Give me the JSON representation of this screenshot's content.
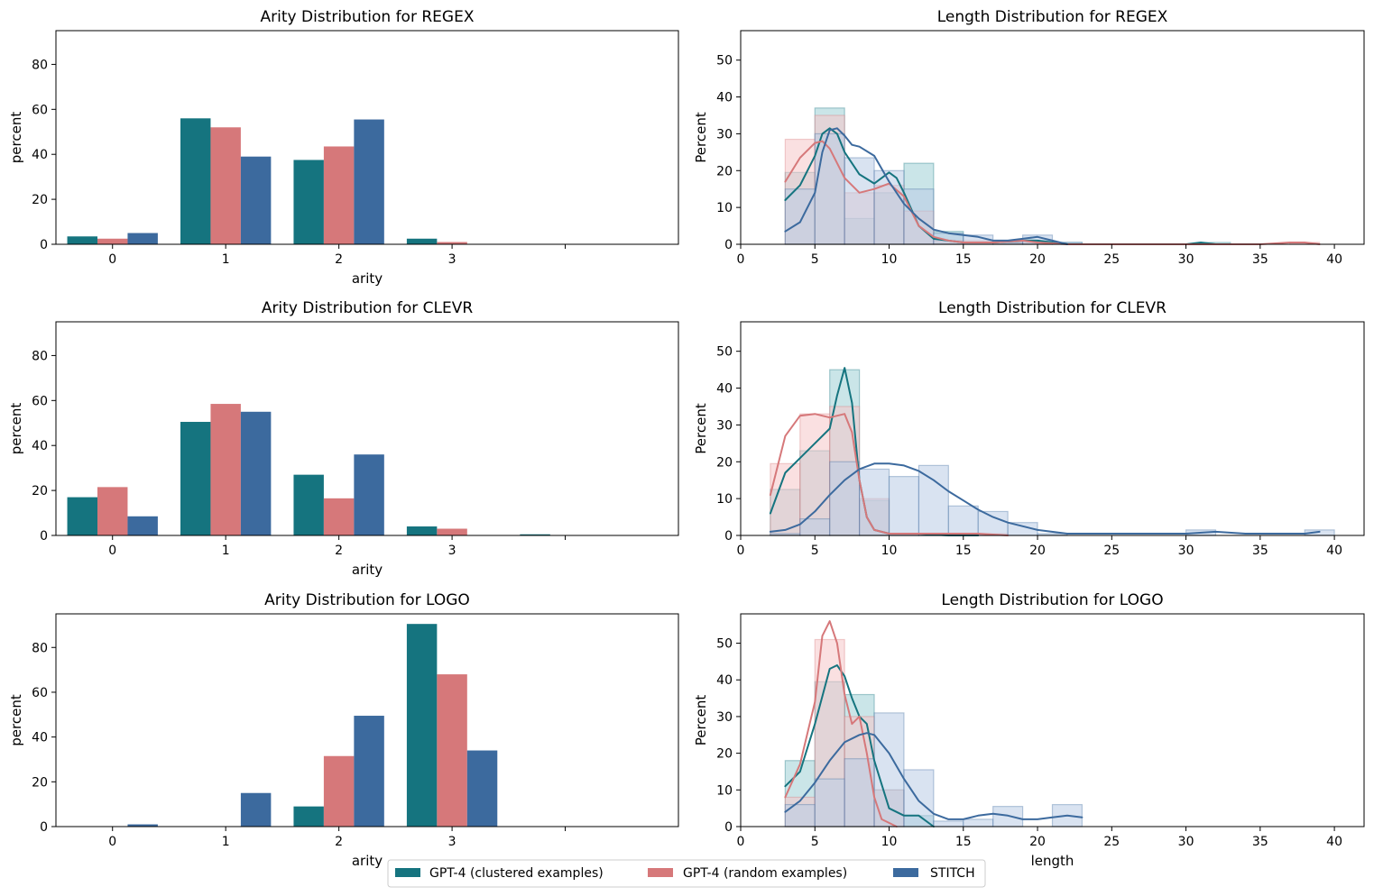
{
  "colors": {
    "gpt4_clustered": "#15747f",
    "gpt4_random": "#d6787a",
    "stitch": "#3c6a9e",
    "hist_clustered": "#9fd0d6",
    "hist_random": "#f5c6c9",
    "hist_stitch": "#b9cce6"
  },
  "legend": {
    "items": [
      {
        "label": "GPT-4 (clustered examples)",
        "color": "#15747f"
      },
      {
        "label": "GPT-4 (random examples)",
        "color": "#d6787a"
      },
      {
        "label": "STITCH",
        "color": "#3c6a9e"
      }
    ]
  },
  "chart_data": [
    {
      "type": "bar",
      "title": "Arity Distribution for REGEX",
      "xlabel": "arity",
      "ylabel": "percent",
      "categories": [
        "0",
        "1",
        "2",
        "3",
        ""
      ],
      "ylim": [
        0,
        95
      ],
      "yticks": [
        0,
        20,
        40,
        60,
        80
      ],
      "series": [
        {
          "name": "GPT-4 (clustered examples)",
          "values": [
            3.5,
            56,
            37.5,
            2.5,
            0
          ]
        },
        {
          "name": "GPT-4 (random examples)",
          "values": [
            2.5,
            52,
            43.5,
            1,
            0
          ]
        },
        {
          "name": "STITCH",
          "values": [
            5,
            39,
            55.5,
            0,
            0
          ]
        }
      ]
    },
    {
      "type": "histogram",
      "title": "Length Distribution for REGEX",
      "xlabel": "",
      "ylabel": "Percent",
      "xlim": [
        0,
        42
      ],
      "ylim": [
        0,
        58
      ],
      "xticks": [
        0,
        5,
        10,
        15,
        20,
        25,
        30,
        35,
        40
      ],
      "yticks": [
        0,
        10,
        20,
        30,
        40,
        50
      ],
      "series": [
        {
          "name": "GPT-4 (clustered examples)",
          "bin_edges": [
            3,
            5,
            7,
            9,
            11,
            13,
            15,
            17,
            19,
            21,
            23,
            25,
            27,
            29,
            31,
            33
          ],
          "values": [
            19.5,
            37,
            7,
            14,
            22,
            3.5,
            0.5,
            0.5,
            1,
            0.5,
            0,
            0,
            0,
            0,
            0.5
          ],
          "kde_x": [
            3,
            4,
            5,
            5.5,
            6,
            6.5,
            7,
            8,
            9,
            10,
            10.5,
            11,
            12,
            13,
            15,
            17,
            19,
            20,
            21,
            22,
            25,
            30,
            31,
            32,
            35
          ],
          "kde_y": [
            12,
            16,
            24,
            30,
            31.5,
            30,
            25,
            19,
            16.5,
            19.5,
            18,
            14,
            5,
            1.5,
            0.5,
            0.5,
            1,
            1,
            0.5,
            0,
            0,
            0,
            0.5,
            0,
            0
          ]
        },
        {
          "name": "GPT-4 (random examples)",
          "bin_edges": [
            3,
            5,
            7,
            9,
            11,
            13,
            15,
            17,
            19,
            21,
            23,
            25,
            27,
            29,
            31,
            33,
            35,
            37,
            39
          ],
          "values": [
            28.5,
            35,
            14,
            16,
            9,
            1,
            1,
            1,
            0.5,
            0,
            0,
            0,
            0,
            0,
            0,
            0,
            0,
            0.5
          ],
          "kde_x": [
            3,
            4,
            5,
            5.5,
            6,
            7,
            8,
            9,
            10,
            11,
            12,
            13,
            14,
            15,
            17,
            19,
            20,
            22,
            25,
            30,
            35,
            37,
            38,
            39
          ],
          "kde_y": [
            17,
            23.5,
            27.5,
            28,
            26,
            18,
            14,
            15,
            16.5,
            13,
            5,
            2,
            1,
            0.5,
            0.5,
            1,
            0.5,
            0,
            0,
            0,
            0,
            0.5,
            0.5,
            0
          ]
        },
        {
          "name": "STITCH",
          "bin_edges": [
            3,
            5,
            7,
            9,
            11,
            13,
            15,
            17,
            19,
            21,
            23
          ],
          "values": [
            15,
            30,
            23.5,
            20,
            15,
            3,
            2.5,
            0.5,
            2.5,
            0.5
          ],
          "kde_x": [
            3,
            4,
            5,
            5.5,
            6,
            6.5,
            7,
            7.5,
            8,
            9,
            10,
            11,
            12,
            13,
            14,
            15,
            16,
            17,
            18,
            19,
            20,
            21,
            22
          ],
          "kde_y": [
            3.5,
            6,
            14,
            25,
            31,
            31.5,
            29.5,
            27,
            26.5,
            24,
            17,
            11,
            7,
            4,
            3,
            2.5,
            2,
            1,
            1,
            1.5,
            2,
            1,
            0
          ]
        }
      ]
    },
    {
      "type": "bar",
      "title": "Arity Distribution for CLEVR",
      "xlabel": "arity",
      "ylabel": "percent",
      "categories": [
        "0",
        "1",
        "2",
        "3",
        ""
      ],
      "ylim": [
        0,
        95
      ],
      "yticks": [
        0,
        20,
        40,
        60,
        80
      ],
      "series": [
        {
          "name": "GPT-4 (clustered examples)",
          "values": [
            17,
            50.5,
            27,
            4,
            0.5
          ]
        },
        {
          "name": "GPT-4 (random examples)",
          "values": [
            21.5,
            58.5,
            16.5,
            3,
            0
          ]
        },
        {
          "name": "STITCH",
          "values": [
            8.5,
            55,
            36,
            0,
            0
          ]
        }
      ]
    },
    {
      "type": "histogram",
      "title": "Length Distribution for CLEVR",
      "xlabel": "",
      "ylabel": "Percent",
      "xlim": [
        0,
        42
      ],
      "ylim": [
        0,
        58
      ],
      "xticks": [
        0,
        5,
        10,
        15,
        20,
        25,
        30,
        35,
        40
      ],
      "yticks": [
        0,
        10,
        20,
        30,
        40,
        50
      ],
      "series": [
        {
          "name": "GPT-4 (clustered examples)",
          "bin_edges": [
            2,
            4,
            6,
            8,
            10,
            12,
            14,
            16,
            18
          ],
          "values": [
            12.5,
            23,
            45,
            9.5,
            0.5,
            0.5,
            0,
            0
          ],
          "kde_x": [
            2,
            3,
            4,
            5,
            6,
            6.5,
            7,
            7.5,
            8,
            8.5,
            9,
            10,
            12,
            14,
            16
          ],
          "kde_y": [
            6,
            17,
            21,
            25,
            29,
            38,
            45.5,
            36,
            15,
            5,
            1.5,
            0.5,
            0.5,
            0,
            0
          ]
        },
        {
          "name": "GPT-4 (random examples)",
          "bin_edges": [
            2,
            4,
            6,
            8,
            10,
            12,
            14,
            16,
            18
          ],
          "values": [
            19.5,
            33,
            35,
            10,
            0.5,
            0.5,
            0.5,
            0.5
          ],
          "kde_x": [
            2,
            3,
            4,
            5,
            6,
            7,
            7.5,
            8,
            8.5,
            9,
            10,
            12,
            14,
            16,
            18
          ],
          "kde_y": [
            11,
            27,
            32.5,
            33,
            32,
            33,
            28,
            15,
            5,
            1.5,
            0.5,
            0.5,
            0.5,
            0.5,
            0
          ]
        },
        {
          "name": "STITCH",
          "bin_edges": [
            2,
            4,
            6,
            8,
            10,
            12,
            14,
            16,
            18,
            20,
            22,
            24,
            26,
            28,
            30,
            32,
            34,
            36,
            38,
            40
          ],
          "values": [
            0.5,
            4.5,
            20,
            18,
            16,
            19,
            8,
            6.5,
            3.5,
            0.5,
            0,
            0,
            0,
            0,
            1.5,
            0,
            0,
            0,
            1.5
          ],
          "kde_x": [
            2,
            3,
            4,
            5,
            6,
            7,
            8,
            9,
            10,
            11,
            12,
            13,
            14,
            15,
            16,
            17,
            18,
            20,
            22,
            24,
            26,
            28,
            30,
            32,
            34,
            36,
            38,
            39
          ],
          "kde_y": [
            1,
            1.5,
            3,
            6.5,
            11,
            15,
            18,
            19.5,
            19.5,
            19,
            17.5,
            15,
            12,
            9.5,
            7,
            5,
            3.5,
            1.5,
            0.5,
            0.5,
            0.5,
            0.5,
            0.5,
            1,
            0.5,
            0.5,
            0.5,
            1
          ]
        }
      ]
    },
    {
      "type": "bar",
      "title": "Arity Distribution for LOGO",
      "xlabel": "arity",
      "ylabel": "percent",
      "categories": [
        "0",
        "1",
        "2",
        "3",
        ""
      ],
      "ylim": [
        0,
        95
      ],
      "yticks": [
        0,
        20,
        40,
        60,
        80
      ],
      "series": [
        {
          "name": "GPT-4 (clustered examples)",
          "values": [
            0,
            0,
            9,
            90.5,
            0
          ]
        },
        {
          "name": "GPT-4 (random examples)",
          "values": [
            0,
            0,
            31.5,
            68,
            0
          ]
        },
        {
          "name": "STITCH",
          "values": [
            1,
            15,
            49.5,
            34,
            0
          ]
        }
      ]
    },
    {
      "type": "histogram",
      "title": "Length Distribution for LOGO",
      "xlabel": "length",
      "ylabel": "Percent",
      "xlim": [
        0,
        42
      ],
      "ylim": [
        0,
        58
      ],
      "xticks": [
        0,
        5,
        10,
        15,
        20,
        25,
        30,
        35,
        40
      ],
      "yticks": [
        0,
        10,
        20,
        30,
        40,
        50
      ],
      "series": [
        {
          "name": "GPT-4 (clustered examples)",
          "bin_edges": [
            3,
            5,
            7,
            9,
            11,
            13
          ],
          "values": [
            18,
            39.5,
            36,
            10,
            3
          ],
          "kde_x": [
            3,
            4,
            5,
            6,
            6.5,
            7,
            7.5,
            8,
            8.5,
            9,
            10,
            11,
            12,
            13
          ],
          "kde_y": [
            11,
            15,
            28,
            43,
            44,
            41,
            35,
            30,
            28,
            18,
            5,
            3,
            3,
            0
          ]
        },
        {
          "name": "GPT-4 (random examples)",
          "bin_edges": [
            3,
            5,
            7,
            9,
            11
          ],
          "values": [
            8,
            51,
            30,
            10
          ],
          "kde_x": [
            3,
            4,
            5,
            5.5,
            6,
            6.5,
            7,
            7.5,
            8,
            8.5,
            9,
            9.5,
            10,
            10.5
          ],
          "kde_y": [
            8,
            17,
            34,
            52,
            56,
            50,
            36,
            28,
            30,
            20,
            8,
            2,
            1,
            0
          ]
        },
        {
          "name": "STITCH",
          "bin_edges": [
            3,
            5,
            7,
            9,
            11,
            13,
            15,
            17,
            19,
            21,
            23
          ],
          "values": [
            6,
            13,
            18.5,
            31,
            15.5,
            1.5,
            2,
            5.5,
            0,
            6
          ],
          "kde_x": [
            3,
            4,
            5,
            6,
            7,
            8,
            8.5,
            9,
            10,
            11,
            12,
            13,
            14,
            15,
            16,
            17,
            18,
            19,
            20,
            21,
            22,
            23
          ],
          "kde_y": [
            4,
            7,
            12,
            18,
            23,
            25,
            25.5,
            25,
            20,
            13,
            7,
            3.5,
            2,
            2,
            3,
            3.5,
            3,
            2,
            2,
            2.5,
            3,
            2.5
          ]
        }
      ]
    }
  ]
}
